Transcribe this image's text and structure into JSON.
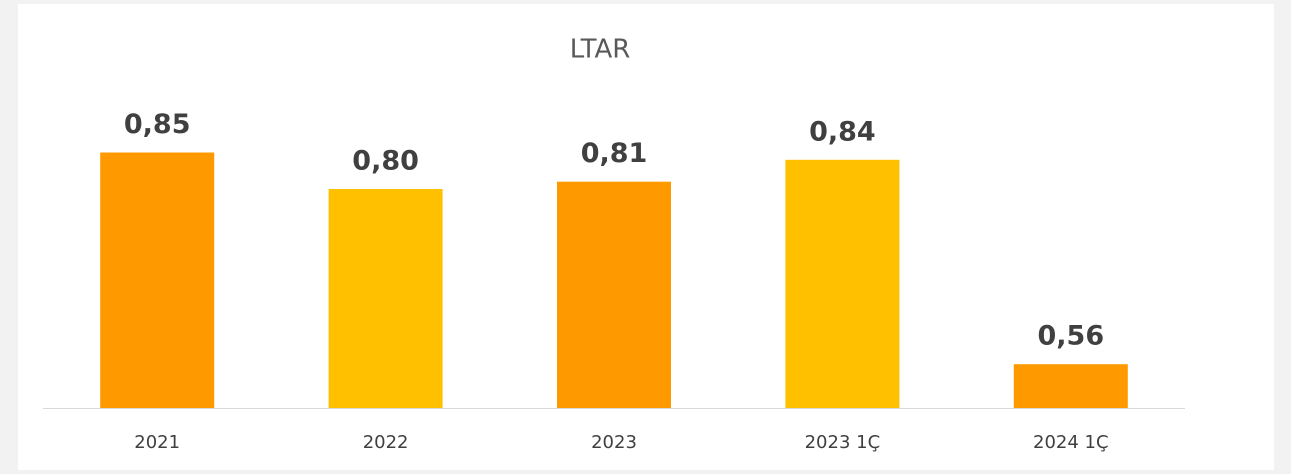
{
  "chart_data": {
    "type": "bar",
    "title": "LTAR",
    "categories": [
      "2021",
      "2022",
      "2023",
      "2023 1Ç",
      "2024 1Ç"
    ],
    "values": [
      0.85,
      0.8,
      0.81,
      0.84,
      0.56
    ],
    "value_labels": [
      "0,85",
      "0,80",
      "0,81",
      "0,84",
      "0,56"
    ],
    "colors": [
      "#ff9900",
      "#ffc000",
      "#ff9900",
      "#ffc000",
      "#ff9900"
    ],
    "ylim": [
      0.5,
      0.9
    ]
  }
}
